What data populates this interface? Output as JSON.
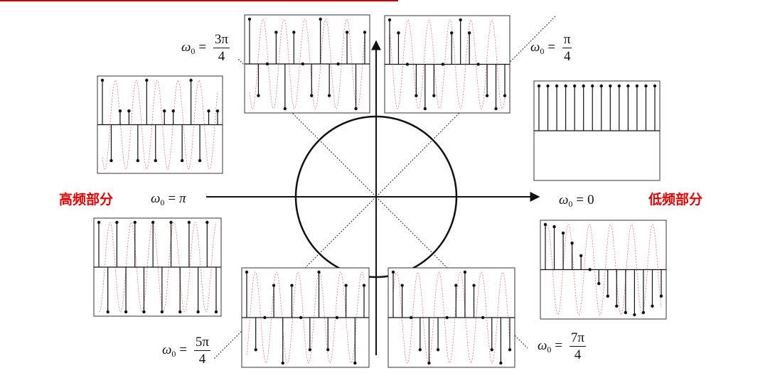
{
  "labels": {
    "high_freq": "高频部分",
    "low_freq": "低频部分",
    "omega_symbol": "ω",
    "omega_sub": "0",
    "equals": "=",
    "pi_value": "π",
    "zero_value": "0",
    "frac_3pi_num": "3π",
    "frac_3pi_den": "4",
    "frac_pi_num": "π",
    "frac_pi_den": "4",
    "frac_5pi_num": "5π",
    "frac_5pi_den": "4",
    "frac_7pi_num": "7π",
    "frac_7pi_den": "4"
  },
  "colors": {
    "stem": "#111111",
    "carrier": "#e03030",
    "band_label": "#e60000",
    "top_rule": "#c00000"
  },
  "panels": [
    {
      "id": "freq-0",
      "omega_over_pi": 0,
      "samples": 14
    },
    {
      "id": "freq-pi-4",
      "omega_over_pi": 0.25,
      "samples": 14
    },
    {
      "id": "freq-3pi-4",
      "omega_over_pi": 0.75,
      "samples": 14
    },
    {
      "id": "freq-high-left",
      "omega_over_pi": 0.8,
      "samples": 14
    },
    {
      "id": "freq-pi",
      "omega_over_pi": 1,
      "samples": 14
    },
    {
      "id": "freq-5pi-4",
      "omega_over_pi": 1.25,
      "samples": 14
    },
    {
      "id": "freq-7pi-4",
      "omega_over_pi": 1.75,
      "samples": 14
    },
    {
      "id": "freq-low-right",
      "omega_over_pi": 1.9,
      "samples": 14
    }
  ]
}
